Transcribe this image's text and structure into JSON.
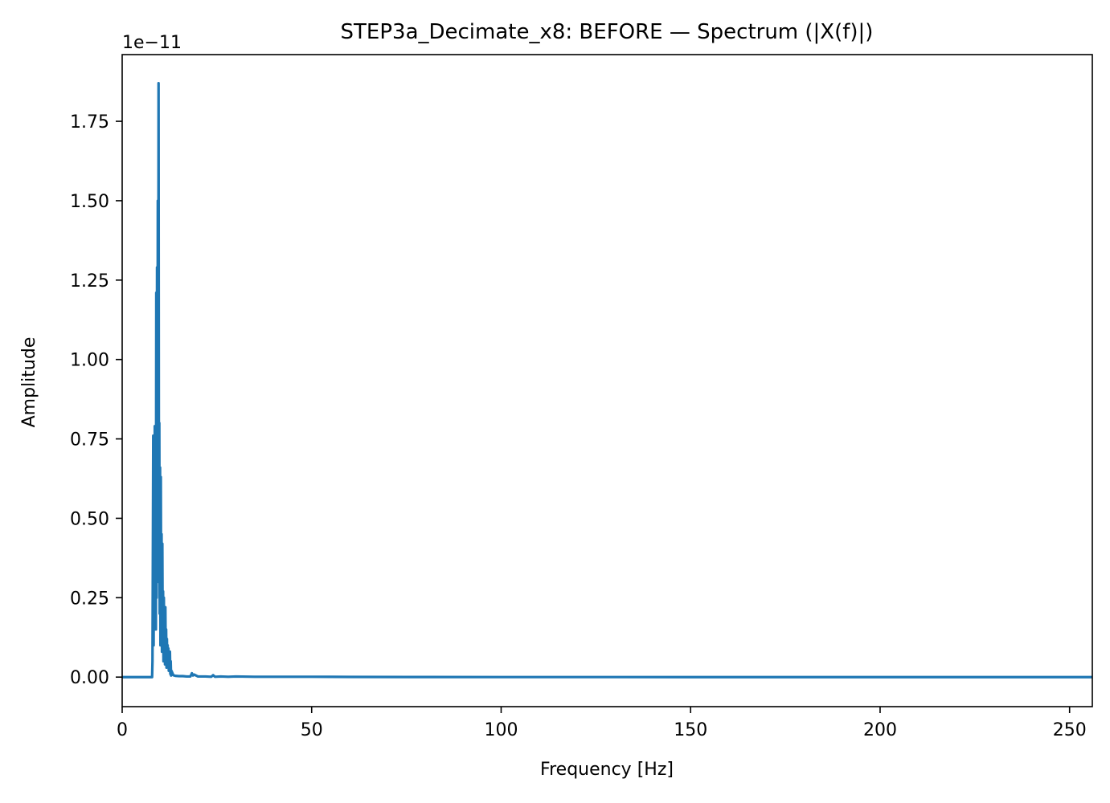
{
  "chart_data": {
    "type": "line",
    "title": "STEP3a_Decimate_x8: BEFORE — Spectrum (|X(f)|)",
    "xlabel": "Frequency [Hz]",
    "ylabel": "Amplitude",
    "y_offset_label": "1e−11",
    "xlim": [
      0,
      256
    ],
    "ylim": [
      -0.093,
      1.96
    ],
    "x_ticks": [
      0,
      50,
      100,
      150,
      200,
      250
    ],
    "x_tick_labels": [
      "0",
      "50",
      "100",
      "150",
      "200",
      "250"
    ],
    "y_ticks": [
      0.0,
      0.25,
      0.5,
      0.75,
      1.0,
      1.25,
      1.5,
      1.75
    ],
    "y_tick_labels": [
      "0.00",
      "0.25",
      "0.50",
      "0.75",
      "1.00",
      "1.25",
      "1.50",
      "1.75"
    ],
    "grid": false,
    "line_color": "#1f77b4",
    "series": [
      {
        "x": [
          0,
          7.9,
          8.0,
          8.1,
          8.2,
          8.3,
          8.4,
          8.5,
          8.6,
          8.7,
          8.8,
          8.9,
          9.0,
          9.1,
          9.2,
          9.3,
          9.4,
          9.5,
          9.6,
          9.7,
          9.8,
          9.9,
          10.0,
          10.1,
          10.2,
          10.3,
          10.4,
          10.5,
          10.6,
          10.7,
          10.8,
          10.9,
          11.0,
          11.1,
          11.2,
          11.3,
          11.4,
          11.5,
          11.6,
          11.7,
          11.8,
          11.9,
          12.0,
          12.1,
          12.2,
          12.3,
          12.4,
          12.5,
          12.6,
          12.7,
          12.8,
          12.9,
          13.0,
          13.5,
          14,
          15,
          16,
          17,
          18,
          18.4,
          18.7,
          19,
          20,
          22,
          23.5,
          24,
          24.5,
          26,
          28,
          30,
          35,
          40,
          45,
          50,
          55,
          60,
          80,
          100,
          150,
          200,
          256
        ],
        "y": [
          0,
          0,
          0.05,
          0.4,
          0.76,
          0.1,
          0.7,
          0.2,
          0.79,
          0.3,
          0.75,
          0.15,
          1.21,
          0.25,
          1.29,
          0.4,
          1.5,
          0.3,
          1.87,
          0.5,
          0.8,
          0.2,
          0.66,
          0.1,
          0.63,
          0.15,
          0.45,
          0.08,
          0.42,
          0.12,
          0.27,
          0.05,
          0.25,
          0.1,
          0.2,
          0.04,
          0.22,
          0.06,
          0.15,
          0.03,
          0.12,
          0.05,
          0.1,
          0.03,
          0.09,
          0.02,
          0.06,
          0.03,
          0.08,
          0.01,
          0.05,
          0.005,
          0.02,
          0.006,
          0.004,
          0.003,
          0.003,
          0.002,
          0.002,
          0.012,
          0.005,
          0.008,
          0.002,
          0.002,
          0.001,
          0.006,
          0.001,
          0.002,
          0.001,
          0.002,
          0.001,
          0.001,
          0.001,
          0.001,
          0.0008,
          0.0005,
          0.0002,
          0.0001,
          0,
          0,
          0
        ]
      }
    ]
  }
}
